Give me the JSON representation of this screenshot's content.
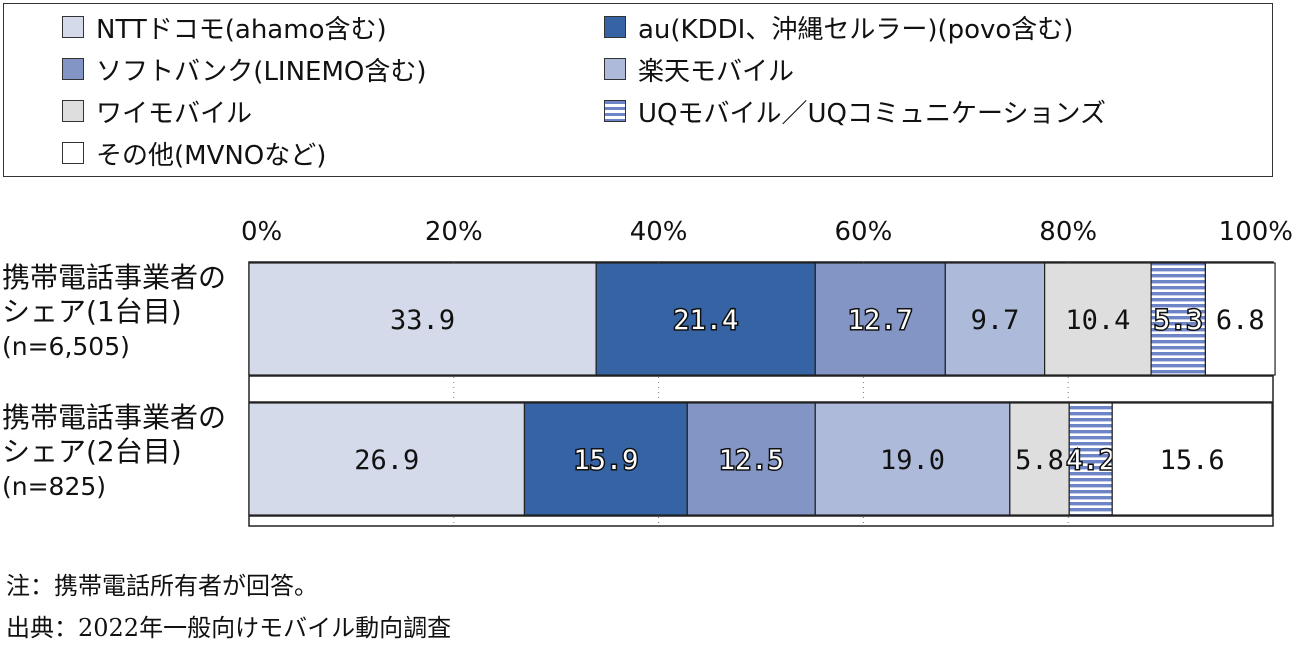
{
  "legend": {
    "items": [
      {
        "label": "NTTドコモ(ahamo含む)",
        "color": "#d4dae9",
        "pattern": "solid"
      },
      {
        "label": "au(KDDI、沖縄セルラー)(povo含む)",
        "color": "#3563a3",
        "pattern": "solid"
      },
      {
        "label": "ソフトバンク(LINEMO含む)",
        "color": "#8395c5",
        "pattern": "solid"
      },
      {
        "label": "楽天モバイル",
        "color": "#aebad9",
        "pattern": "solid"
      },
      {
        "label": "ワイモバイル",
        "color": "#dedede",
        "pattern": "solid"
      },
      {
        "label": "UQモバイル／UQコミュニケーションズ",
        "color": "#6d85c6",
        "pattern": "stripes"
      },
      {
        "label": "その他(MVNOなど)",
        "color": "#ffffff",
        "pattern": "solid"
      }
    ]
  },
  "chart_data": {
    "type": "bar",
    "orientation": "horizontal",
    "stacked": true,
    "xlim": [
      0,
      100
    ],
    "x_ticks": [
      "0%",
      "20%",
      "40%",
      "60%",
      "80%",
      "100%"
    ],
    "grid": "dotted vertical",
    "categories": [
      [
        "携帯電話事業者の",
        "シェア(1台目)",
        "(n=6,505)"
      ],
      [
        "携帯電話事業者の",
        "シェア(2台目)",
        "(n=825)"
      ]
    ],
    "series": [
      {
        "name": "NTTドコモ(ahamo含む)",
        "values": [
          33.9,
          26.9
        ],
        "labels": [
          "33.9",
          "26.9"
        ]
      },
      {
        "name": "au(KDDI、沖縄セルラー)(povo含む)",
        "values": [
          21.4,
          15.9
        ],
        "labels": [
          "21.4",
          "15.9"
        ]
      },
      {
        "name": "ソフトバンク(LINEMO含む)",
        "values": [
          12.7,
          12.5
        ],
        "labels": [
          "12.7",
          "12.5"
        ]
      },
      {
        "name": "楽天モバイル",
        "values": [
          9.7,
          19.0
        ],
        "labels": [
          "9.7",
          "19.0"
        ]
      },
      {
        "name": "ワイモバイル",
        "values": [
          10.4,
          5.8
        ],
        "labels": [
          "10.4",
          "5.8"
        ]
      },
      {
        "name": "UQモバイル／UQコミュニケーションズ",
        "values": [
          5.3,
          4.2
        ],
        "labels": [
          "5.3",
          "4.2"
        ]
      },
      {
        "name": "その他(MVNOなど)",
        "values": [
          6.8,
          15.6
        ],
        "labels": [
          "6.8",
          "15.6"
        ]
      }
    ]
  },
  "notes": {
    "note": "注：携帯電話所有者が回答。",
    "source": "出典：2022年一般向けモバイル動向調査"
  }
}
